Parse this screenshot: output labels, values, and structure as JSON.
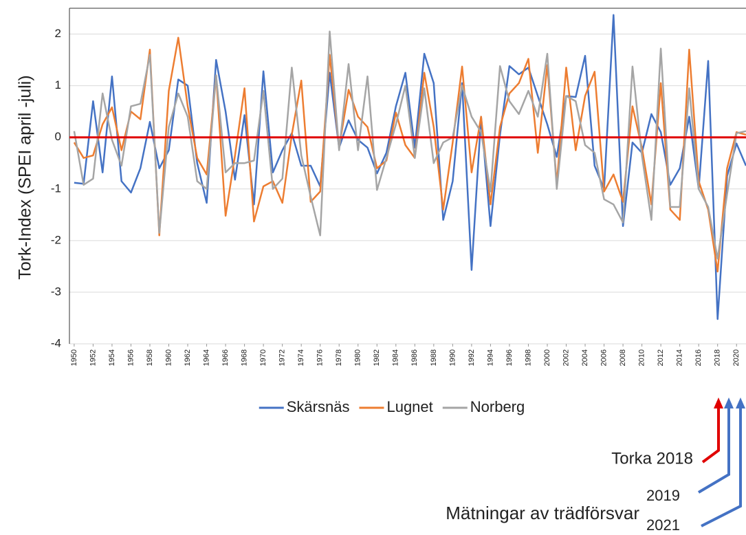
{
  "chart_data": {
    "type": "line",
    "y_label": "Tork-Index  (SPEI april -juli)",
    "x": [
      1950,
      1951,
      1952,
      1953,
      1954,
      1955,
      1956,
      1957,
      1958,
      1959,
      1960,
      1961,
      1962,
      1963,
      1964,
      1965,
      1966,
      1967,
      1968,
      1969,
      1970,
      1971,
      1972,
      1973,
      1974,
      1975,
      1976,
      1977,
      1978,
      1979,
      1980,
      1981,
      1982,
      1983,
      1984,
      1985,
      1986,
      1987,
      1988,
      1989,
      1990,
      1991,
      1992,
      1993,
      1994,
      1995,
      1996,
      1997,
      1998,
      1999,
      2000,
      2001,
      2002,
      2003,
      2004,
      2005,
      2006,
      2007,
      2008,
      2009,
      2010,
      2011,
      2012,
      2013,
      2014,
      2015,
      2016,
      2017,
      2018,
      2019,
      2020,
      2021
    ],
    "series": [
      {
        "name": "Skärsnäs",
        "color": "#4472c4",
        "values": [
          -0.88,
          -0.9,
          0.7,
          -0.68,
          1.18,
          -0.85,
          -1.07,
          -0.6,
          0.3,
          -0.6,
          -0.25,
          1.12,
          1.0,
          -0.5,
          -1.27,
          1.5,
          0.5,
          -0.82,
          0.43,
          -1.3,
          1.28,
          -0.68,
          -0.25,
          0.08,
          -0.55,
          -0.55,
          -0.95,
          1.25,
          -0.2,
          0.33,
          -0.05,
          -0.2,
          -0.7,
          -0.3,
          0.6,
          1.25,
          -0.2,
          1.62,
          1.05,
          -1.6,
          -0.85,
          1.05,
          -2.57,
          0.4,
          -1.72,
          0.05,
          1.38,
          1.22,
          1.35,
          0.8,
          0.25,
          -0.38,
          0.8,
          0.78,
          1.58,
          -0.55,
          -1.0,
          2.37,
          -1.72,
          -0.1,
          -0.3,
          0.45,
          0.1,
          -0.92,
          -0.6,
          0.4,
          -1.0,
          1.48,
          -3.52,
          -0.75,
          -0.12,
          -0.55
        ]
      },
      {
        "name": "Lugnet",
        "color": "#ed7d31",
        "values": [
          -0.1,
          -0.4,
          -0.35,
          0.25,
          0.58,
          -0.25,
          0.5,
          0.35,
          1.7,
          -1.9,
          0.9,
          1.93,
          0.6,
          -0.4,
          -0.72,
          1.2,
          -1.52,
          -0.35,
          0.95,
          -1.63,
          -0.95,
          -0.85,
          -1.27,
          0.05,
          1.1,
          -1.25,
          -1.05,
          1.6,
          -0.2,
          0.92,
          0.4,
          0.2,
          -0.6,
          -0.45,
          0.48,
          -0.15,
          -0.4,
          1.25,
          0.2,
          -1.4,
          -0.1,
          1.37,
          -0.68,
          0.4,
          -1.3,
          0.2,
          0.85,
          1.05,
          1.52,
          -0.3,
          1.4,
          -0.9,
          1.35,
          -0.25,
          0.8,
          1.27,
          -1.05,
          -0.72,
          -1.25,
          0.6,
          -0.2,
          -1.3,
          1.05,
          -1.4,
          -1.6,
          1.7,
          -0.85,
          -1.4,
          -2.6,
          -0.6,
          0.1,
          0.05
        ]
      },
      {
        "name": "Norberg",
        "color": "#a5a5a5",
        "values": [
          0.12,
          -0.92,
          -0.8,
          0.85,
          -0.05,
          -0.55,
          0.6,
          0.65,
          1.6,
          -1.85,
          0.2,
          0.85,
          0.4,
          -0.85,
          -1.0,
          1.2,
          -0.68,
          -0.5,
          -0.5,
          -0.45,
          0.9,
          -1.0,
          -0.8,
          1.35,
          -0.35,
          -1.15,
          -1.9,
          2.05,
          -0.25,
          1.42,
          -0.25,
          1.18,
          -1.02,
          -0.4,
          0.25,
          1.0,
          -0.4,
          0.95,
          -0.5,
          -0.1,
          0.0,
          1.0,
          0.4,
          0.1,
          -1.05,
          1.38,
          0.7,
          0.45,
          0.9,
          0.4,
          1.62,
          -1.0,
          0.8,
          0.7,
          -0.15,
          -0.3,
          -1.2,
          -1.3,
          -1.65,
          1.37,
          -0.35,
          -1.6,
          1.72,
          -1.35,
          -1.35,
          0.95,
          -1.0,
          -1.35,
          -2.35,
          -1.1,
          0.08,
          0.12
        ]
      }
    ],
    "xlim": [
      1949.5,
      2021
    ],
    "xticks": [
      1950,
      1952,
      1954,
      1956,
      1958,
      1960,
      1962,
      1964,
      1966,
      1968,
      1970,
      1972,
      1974,
      1976,
      1978,
      1980,
      1982,
      1984,
      1986,
      1988,
      1990,
      1992,
      1994,
      1996,
      1998,
      2000,
      2002,
      2004,
      2006,
      2008,
      2010,
      2012,
      2014,
      2016,
      2018,
      2020
    ],
    "ylim": [
      -4,
      2.5
    ],
    "yticks": [
      -4,
      -3,
      -2,
      -1,
      0,
      1,
      2
    ],
    "grid": true,
    "zero_line_color": "#e00000",
    "legend": "bottom",
    "annotations": [
      "Torka 2018",
      "2019",
      "Mätningar av trädförsvar",
      "2021"
    ]
  }
}
